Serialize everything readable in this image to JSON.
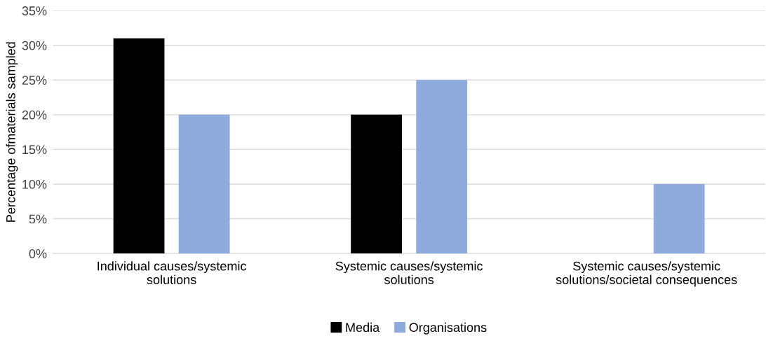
{
  "chart_data": {
    "type": "bar",
    "ylabel": "Percentage ofmaterials sampled",
    "categories": [
      "Individual causes/systemic\nsolutions",
      "Systemic causes/systemic\nsolutions",
      "Systemic causes/systemic\nsolutions/societal consequences"
    ],
    "series": [
      {
        "name": "Media",
        "color": "#000000",
        "values": [
          31,
          20,
          0
        ]
      },
      {
        "name": "Organisations",
        "color": "#8faadc",
        "values": [
          20,
          25,
          10
        ]
      }
    ],
    "ylim": [
      0,
      35
    ],
    "yticks": [
      {
        "value": 0,
        "label": "0%"
      },
      {
        "value": 5,
        "label": "5%"
      },
      {
        "value": 10,
        "label": "10%"
      },
      {
        "value": 15,
        "label": "15%"
      },
      {
        "value": 20,
        "label": "20%"
      },
      {
        "value": 25,
        "label": "25%"
      },
      {
        "value": 30,
        "label": "30%"
      },
      {
        "value": 35,
        "label": "35%"
      }
    ],
    "grid": "y",
    "legend": "bottom"
  }
}
